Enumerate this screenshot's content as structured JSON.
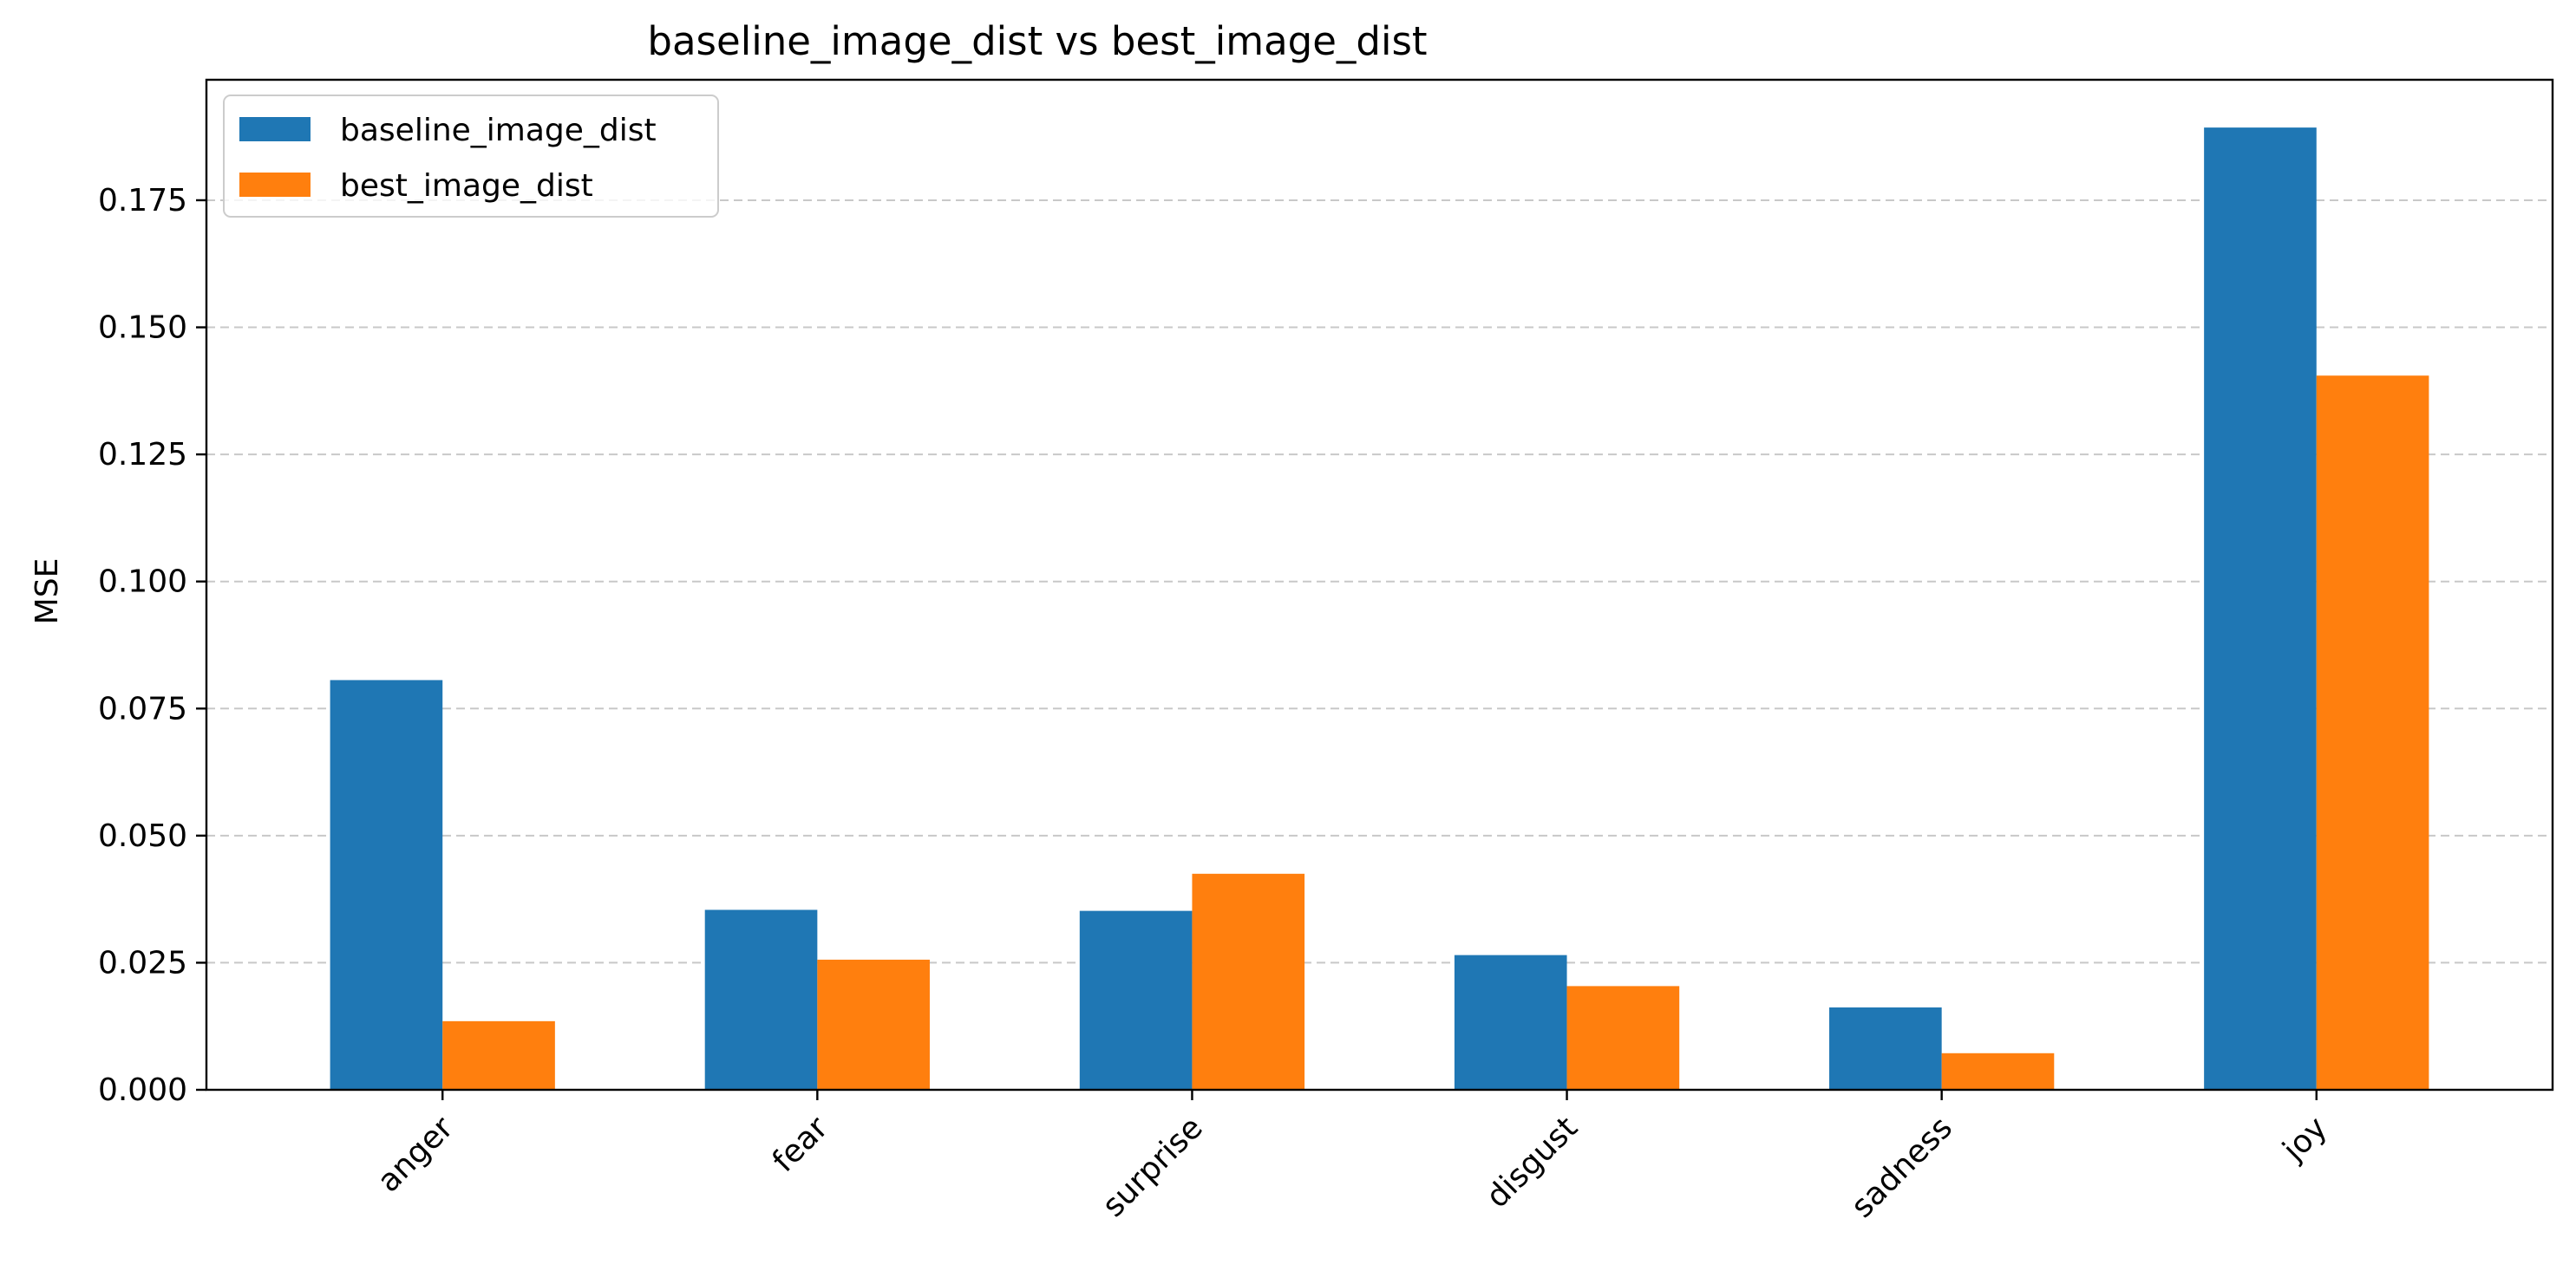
{
  "chart_data": {
    "type": "bar",
    "title": "baseline_image_dist vs best_image_dist",
    "xlabel": "",
    "ylabel": "MSE",
    "categories": [
      "anger",
      "fear",
      "surprise",
      "disgust",
      "sadness",
      "joy"
    ],
    "series": [
      {
        "name": "baseline_image_dist",
        "color": "#1f77b4",
        "values": [
          0.0806,
          0.0354,
          0.0352,
          0.0265,
          0.0162,
          0.1893
        ]
      },
      {
        "name": "best_image_dist",
        "color": "#ff7f0e",
        "values": [
          0.0135,
          0.0256,
          0.0425,
          0.0204,
          0.0072,
          0.1405
        ]
      }
    ],
    "yticks": [
      "0.000",
      "0.025",
      "0.050",
      "0.075",
      "0.100",
      "0.125",
      "0.150",
      "0.175"
    ],
    "ylim": [
      0,
      0.1987
    ],
    "grid": "y, dashed",
    "legend_position": "top-left"
  }
}
